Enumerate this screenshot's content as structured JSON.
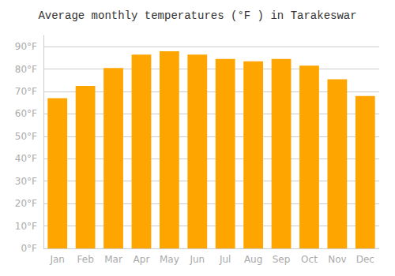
{
  "chart_data": {
    "type": "bar",
    "title": "Average monthly temperatures (°F ) in Tarakeswar",
    "categories": [
      "Jan",
      "Feb",
      "Mar",
      "Apr",
      "May",
      "Jun",
      "Jul",
      "Aug",
      "Sep",
      "Oct",
      "Nov",
      "Dec"
    ],
    "values": [
      67,
      72.5,
      80.5,
      86.5,
      88,
      86.5,
      84.5,
      83.5,
      84.5,
      81.5,
      75.5,
      68
    ],
    "color": "#FFA500",
    "ylim": [
      0,
      95
    ],
    "yticks": [
      {
        "value": 0,
        "label": "0°F"
      },
      {
        "value": 10,
        "label": "10°F"
      },
      {
        "value": 20,
        "label": "20°F"
      },
      {
        "value": 30,
        "label": "30°F"
      },
      {
        "value": 40,
        "label": "40°F"
      },
      {
        "value": 50,
        "label": "50°F"
      },
      {
        "value": 60,
        "label": "60°F"
      },
      {
        "value": 70,
        "label": "70°F"
      },
      {
        "value": 80,
        "label": "80°F"
      },
      {
        "value": 90,
        "label": "90°F"
      }
    ],
    "grid": true
  }
}
